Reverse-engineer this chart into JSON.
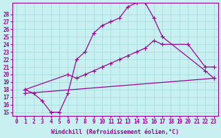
{
  "xlabel": "Windchill (Refroidissement éolien,°C)",
  "ylabel": "",
  "xlim": [
    -0.5,
    23.5
  ],
  "ylim": [
    14.5,
    29.5
  ],
  "xticks": [
    0,
    1,
    2,
    3,
    4,
    5,
    6,
    7,
    8,
    9,
    10,
    11,
    12,
    13,
    14,
    15,
    16,
    17,
    18,
    19,
    20,
    21,
    22,
    23
  ],
  "yticks": [
    15,
    16,
    17,
    18,
    19,
    20,
    21,
    22,
    23,
    24,
    25,
    26,
    27,
    28
  ],
  "bg_color": "#c8f0f0",
  "line_color": "#990099",
  "grid_color": "#a0d8d8",
  "line1_x": [
    1,
    2,
    3,
    4,
    5,
    6,
    7,
    8,
    9,
    10,
    11,
    12,
    13,
    14,
    15,
    16,
    17,
    22,
    23
  ],
  "line1_y": [
    18,
    17.5,
    16.5,
    15,
    15,
    17.5,
    22,
    23,
    25.5,
    26.5,
    27,
    27.5,
    29,
    29.5,
    29.5,
    27.5,
    25,
    20.5,
    19.5
  ],
  "line2_x": [
    1,
    6,
    7,
    8,
    9,
    10,
    11,
    12,
    13,
    14,
    15,
    16,
    17,
    20,
    22,
    23
  ],
  "line2_y": [
    18,
    20,
    19.5,
    20,
    20.5,
    21,
    21.5,
    22,
    22.5,
    23,
    23.5,
    24.5,
    24,
    24,
    21,
    21
  ],
  "line3_x": [
    1,
    23
  ],
  "line3_y": [
    17.5,
    19.5
  ],
  "tick_fontsize": 5.5,
  "label_fontsize": 6.0
}
